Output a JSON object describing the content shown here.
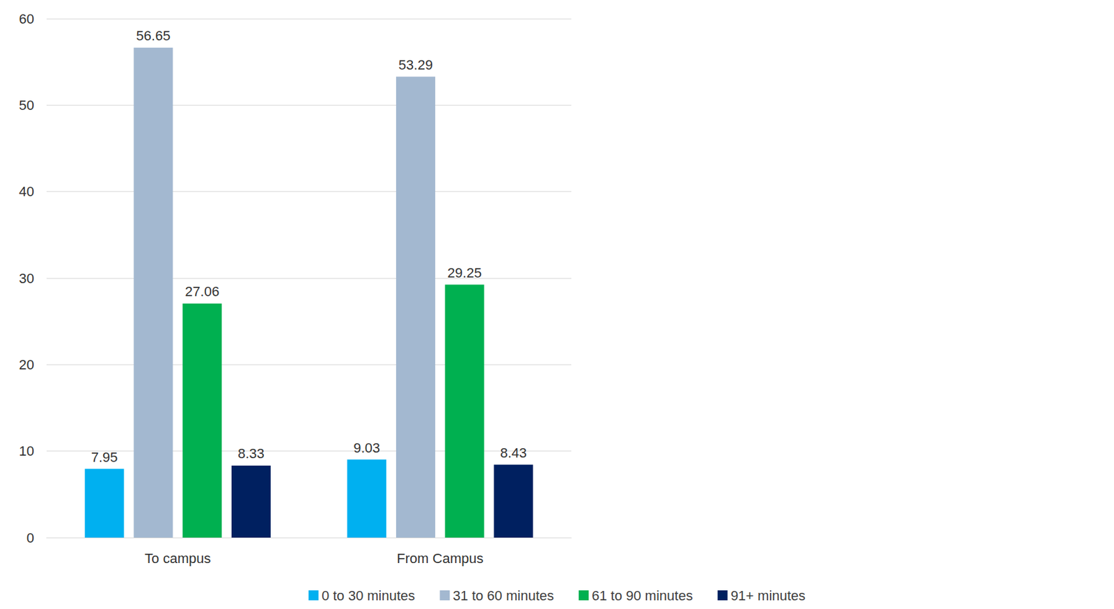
{
  "chart_data": {
    "type": "bar",
    "categories": [
      "To campus",
      "From Campus"
    ],
    "series": [
      {
        "name": "0 to 30 minutes",
        "color": "#00b0f0",
        "values": [
          7.95,
          9.03
        ]
      },
      {
        "name": "31 to 60 minutes",
        "color": "#a3b8d0",
        "values": [
          56.65,
          53.29
        ]
      },
      {
        "name": "61 to 90 minutes",
        "color": "#00b050",
        "values": [
          27.06,
          29.25
        ]
      },
      {
        "name": "91+ minutes",
        "color": "#002060",
        "values": [
          8.33,
          8.43
        ]
      }
    ],
    "ylim": [
      0,
      60
    ],
    "yticks": [
      0,
      10,
      20,
      30,
      40,
      50,
      60
    ],
    "grid": true,
    "data_labels": true,
    "legend": "bottom"
  }
}
